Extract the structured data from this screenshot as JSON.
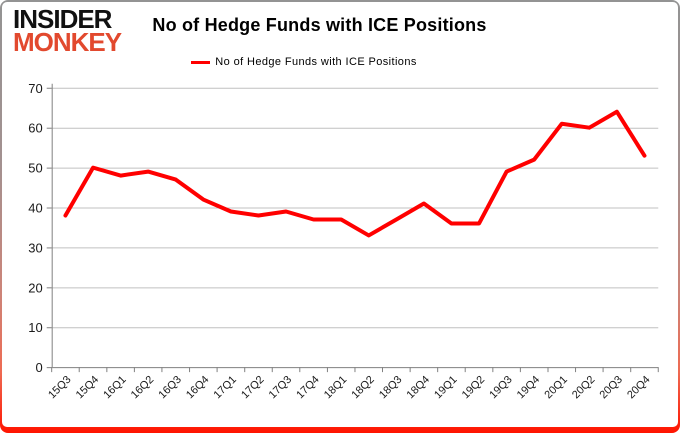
{
  "header": {
    "logo_line1": "INSIDER",
    "logo_line2": "MONKEY",
    "title": "No of Hedge Funds with ICE Positions"
  },
  "legend": {
    "label": "No of Hedge Funds with ICE Positions"
  },
  "colors": {
    "series_line": "#ff0000",
    "logo_monkey": "#e2492e",
    "grid": "#c0c0c0",
    "axis": "#808080",
    "tick_text": "#1a1a1a",
    "frame_bottom": "#ff1400"
  },
  "chart_data": {
    "type": "line",
    "title": "No of Hedge Funds with ICE Positions",
    "categories": [
      "15Q3",
      "15Q4",
      "16Q1",
      "16Q2",
      "16Q3",
      "16Q4",
      "17Q1",
      "17Q2",
      "17Q3",
      "17Q4",
      "18Q1",
      "18Q2",
      "18Q3",
      "18Q4",
      "19Q1",
      "19Q2",
      "19Q3",
      "19Q4",
      "20Q1",
      "20Q2",
      "20Q3",
      "20Q4"
    ],
    "series": [
      {
        "name": "No of Hedge Funds with ICE Positions",
        "color": "#ff0000",
        "values": [
          38,
          50,
          48,
          49,
          47,
          42,
          39,
          38,
          39,
          37,
          37,
          33,
          37,
          41,
          36,
          36,
          49,
          52,
          61,
          60,
          64,
          53
        ]
      }
    ],
    "xlabel": "",
    "ylabel": "",
    "ylim": [
      0,
      70
    ],
    "y_ticks": [
      0,
      10,
      20,
      30,
      40,
      50,
      60,
      70
    ],
    "grid": true,
    "legend_position": "top"
  }
}
